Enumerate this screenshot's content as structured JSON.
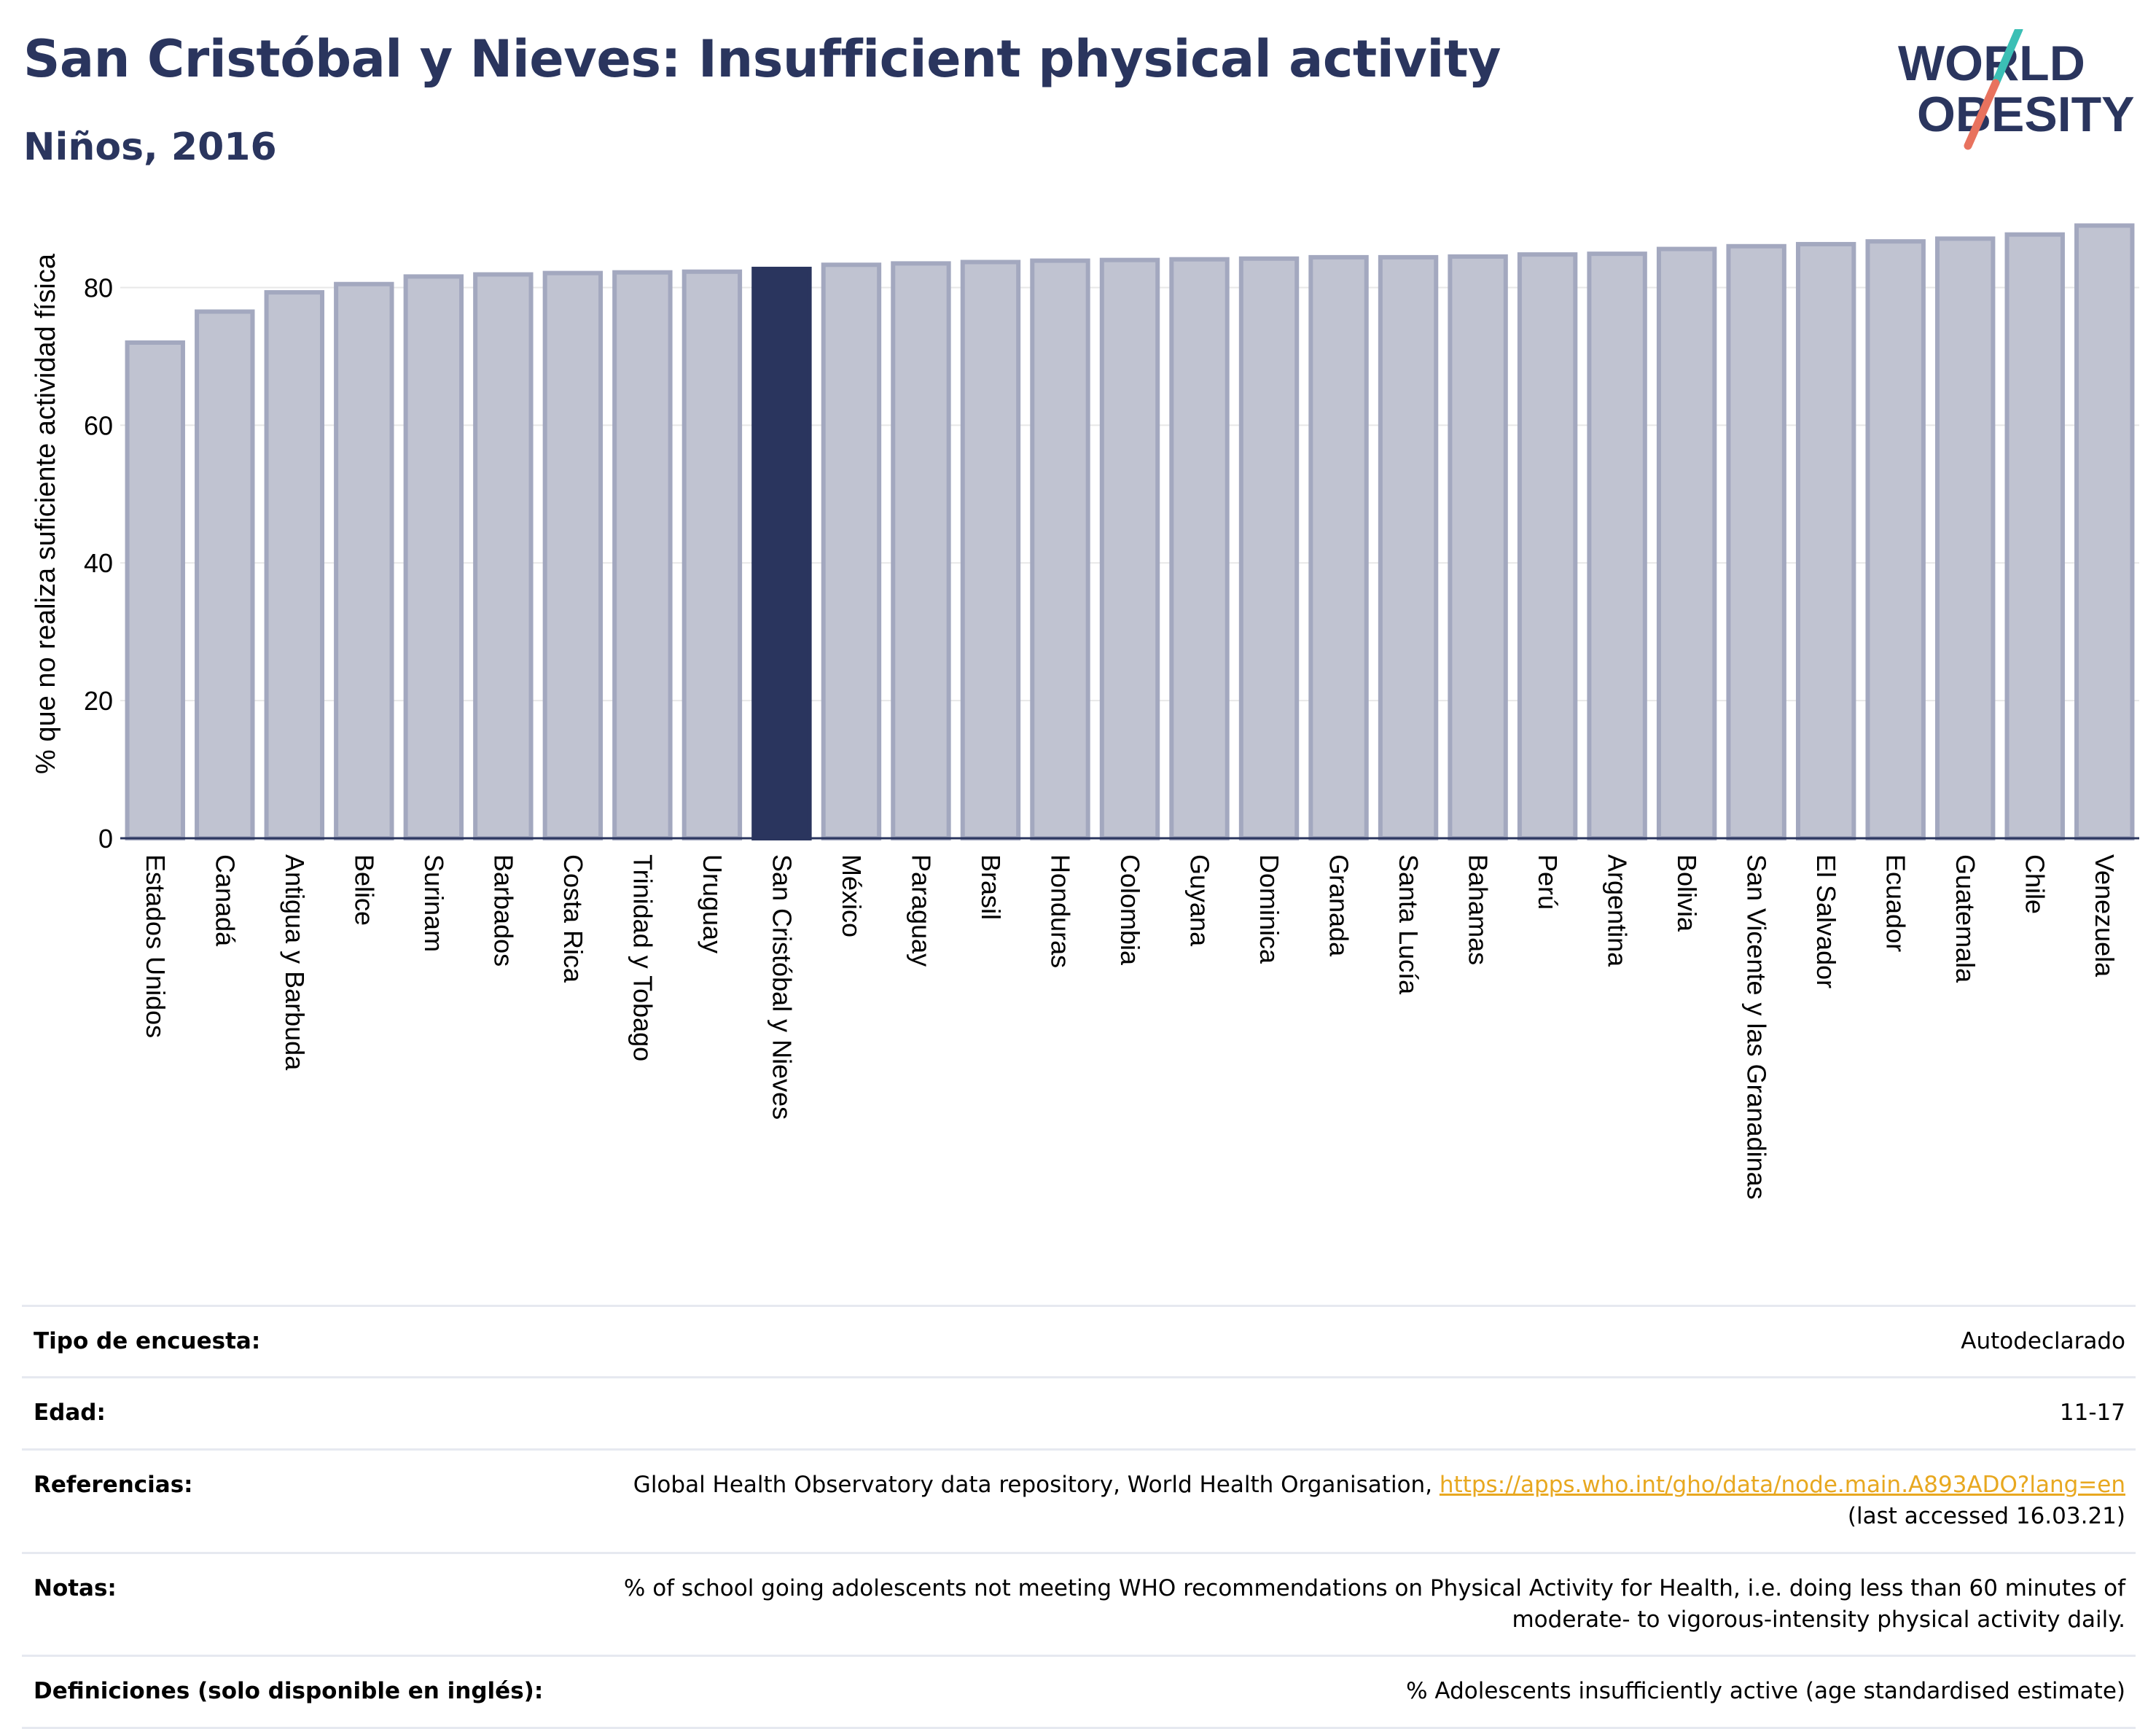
{
  "header": {
    "title": "San Cristóbal y Nieves: Insufficient physical activity",
    "subtitle": "Niños, 2016"
  },
  "logo": {
    "line1": "WORLD",
    "line2": "OBESITY"
  },
  "colors": {
    "highlight": "#2a355e",
    "bar_fill": "#c0c3d1",
    "bar_stroke": "#a3a8bf",
    "grid": "#e8e8e8",
    "title": "#2a355e",
    "link": "#e8a820"
  },
  "chart_data": {
    "type": "bar",
    "ylabel": "% que no realiza suficiente actividad física",
    "ylim": [
      0,
      90
    ],
    "yticks": [
      0,
      20,
      40,
      60,
      80
    ],
    "grid": true,
    "highlight": "San Cristóbal y Nieves",
    "categories": [
      "Estados Unidos",
      "Canadá",
      "Antigua y Barbuda",
      "Belice",
      "Surinam",
      "Barbados",
      "Costa Rica",
      "Trinidad y Tobago",
      "Uruguay",
      "San Cristóbal y Nieves",
      "México",
      "Paraguay",
      "Brasil",
      "Honduras",
      "Colombia",
      "Guyana",
      "Dominica",
      "Granada",
      "Santa Lucía",
      "Bahamas",
      "Perú",
      "Argentina",
      "Bolivia",
      "San Vicente y las Granadinas",
      "El Salvador",
      "Ecuador",
      "Guatemala",
      "Chile",
      "Venezuela"
    ],
    "values": [
      72,
      76.5,
      79.3,
      80.5,
      81.6,
      81.9,
      82.1,
      82.2,
      82.3,
      82.7,
      83.3,
      83.5,
      83.7,
      83.9,
      84,
      84.1,
      84.2,
      84.4,
      84.4,
      84.5,
      84.8,
      84.9,
      85.6,
      86,
      86.3,
      86.7,
      87.1,
      87.7,
      89
    ]
  },
  "info": [
    {
      "label": "Tipo de encuesta:",
      "value": "Autodeclarado"
    },
    {
      "label": "Edad:",
      "value": "11-17"
    },
    {
      "label": "Referencias:",
      "value": "Global Health Observatory data repository, World Health Organisation,",
      "link": "https://apps.who.int/gho/data/node.main.A893ADO?lang=en",
      "value2": "(last accessed 16.03.21)"
    },
    {
      "label": "Notas:",
      "value": "% of school going adolescents not meeting WHO recommendations on Physical Activity for Health, i.e. doing less than 60 minutes of",
      "value2": "moderate- to vigorous-intensity physical activity daily."
    },
    {
      "label": "Definiciones (solo disponible en inglés):",
      "value": "% Adolescents insufficiently active (age standardised estimate)"
    }
  ]
}
